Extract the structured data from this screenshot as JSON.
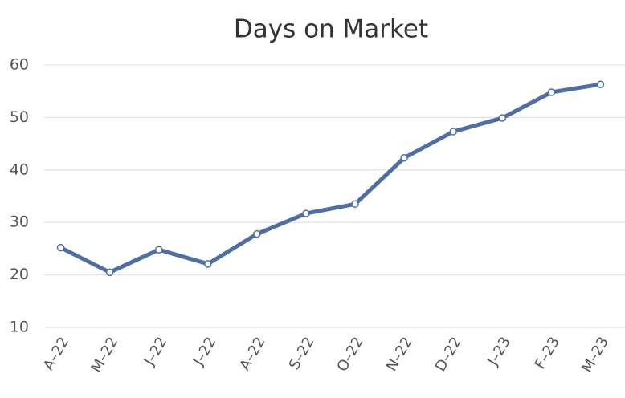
{
  "chart_data": {
    "type": "line",
    "title": "Days on Market",
    "categories": [
      "A–22",
      "M–22",
      "J–22",
      "J–22",
      "A–22",
      "S–22",
      "O–22",
      "N–22",
      "D–22",
      "J–23",
      "F–23",
      "M–23"
    ],
    "values": [
      25.2,
      20.5,
      24.8,
      22.1,
      27.8,
      31.7,
      33.5,
      42.3,
      47.3,
      49.9,
      54.8,
      56.3
    ],
    "color": "#4e6fa5",
    "ylim": [
      10,
      60
    ],
    "yticks": [
      10,
      20,
      30,
      40,
      50,
      60
    ],
    "grid": true
  }
}
